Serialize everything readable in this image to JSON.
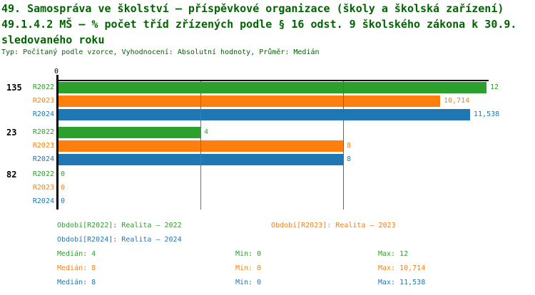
{
  "header": {
    "title_lines": [
      "49. Samospráva ve školství – příspěvkové organizace (školy a školská zařízení)",
      "49.1.4.2 MŠ – % počet tříd zřízených podle § 16 odst. 9 školského zákona k 30.9.",
      "sledovaného roku"
    ],
    "subtitle": "Typ: Počítaný podle vzorce, Vyhodnocení: Absolutní hodnoty, Průměr: Medián",
    "title_color": "#006400"
  },
  "chart_data": {
    "type": "bar",
    "orientation": "horizontal",
    "xlim": [
      0,
      12
    ],
    "axis_tick_label": "0",
    "axis_color": "#000000",
    "categories": [
      "135",
      "23",
      "82"
    ],
    "series_colors": {
      "R2022": "#2ca02c",
      "R2023": "#ff7f0e",
      "R2024": "#1f77b4"
    },
    "groups": [
      {
        "label": "135",
        "bars": [
          {
            "series": "R2022",
            "value": 12,
            "value_label": "12"
          },
          {
            "series": "R2023",
            "value": 10.714,
            "value_label": "10,714"
          },
          {
            "series": "R2024",
            "value": 11.538,
            "value_label": "11,538"
          }
        ]
      },
      {
        "label": "23",
        "bars": [
          {
            "series": "R2022",
            "value": 4,
            "value_label": "4"
          },
          {
            "series": "R2023",
            "value": 8,
            "value_label": "8"
          },
          {
            "series": "R2024",
            "value": 8,
            "value_label": "8"
          }
        ]
      },
      {
        "label": "82",
        "bars": [
          {
            "series": "R2022",
            "value": 0,
            "value_label": "0"
          },
          {
            "series": "R2023",
            "value": 0,
            "value_label": "0"
          },
          {
            "series": "R2024",
            "value": 0,
            "value_label": "0"
          }
        ]
      }
    ],
    "median_lines": [
      {
        "value": 4,
        "color": "#2ca02c"
      },
      {
        "value": 8,
        "color": "#ff7f0e"
      },
      {
        "value": 8,
        "color": "#1f77b4"
      }
    ]
  },
  "legend": {
    "entries": [
      {
        "text": "Období[R2022]: Realita – 2022",
        "color": "#2ca02c"
      },
      {
        "text": "Období[R2023]: Realita – 2023",
        "color": "#ff7f0e"
      },
      {
        "text": "Období[R2024]: Realita – 2024",
        "color": "#1f77b4"
      }
    ]
  },
  "stats": {
    "rows": [
      {
        "median": "Medián: 4",
        "min": "Min: 0",
        "max": "Max: 12",
        "color": "#2ca02c"
      },
      {
        "median": "Medián: 8",
        "min": "Min: 0",
        "max": "Max: 10,714",
        "color": "#ff7f0e"
      },
      {
        "median": "Medián: 8",
        "min": "Min: 0",
        "max": "Max: 11,538",
        "color": "#1f77b4"
      }
    ]
  }
}
